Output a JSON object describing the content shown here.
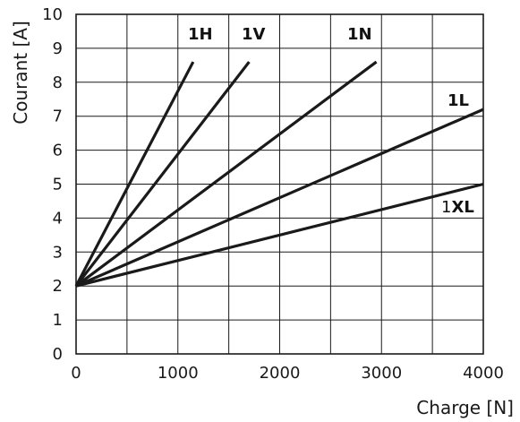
{
  "chart_data": {
    "type": "line",
    "xlabel": "Charge [N]",
    "ylabel": "Courant [A]",
    "xlim": [
      0,
      4000
    ],
    "ylim": [
      0,
      10
    ],
    "x_ticks": [
      "0",
      "1000",
      "2000",
      "3000",
      "4000"
    ],
    "y_ticks": [
      "0",
      "1",
      "2",
      "3",
      "4",
      "5",
      "6",
      "7",
      "8",
      "9",
      "10"
    ],
    "grid": true,
    "series": [
      {
        "name": "1H",
        "x": [
          0,
          1150
        ],
        "y": [
          2,
          8.6
        ]
      },
      {
        "name": "1V",
        "x": [
          0,
          1700
        ],
        "y": [
          2,
          8.6
        ]
      },
      {
        "name": "1N",
        "x": [
          0,
          2950
        ],
        "y": [
          2,
          8.6
        ]
      },
      {
        "name": "1L",
        "x": [
          0,
          4000
        ],
        "y": [
          2,
          7.2
        ]
      },
      {
        "name": "1XL",
        "x": [
          0,
          4000
        ],
        "y": [
          2,
          5.0
        ]
      }
    ]
  }
}
